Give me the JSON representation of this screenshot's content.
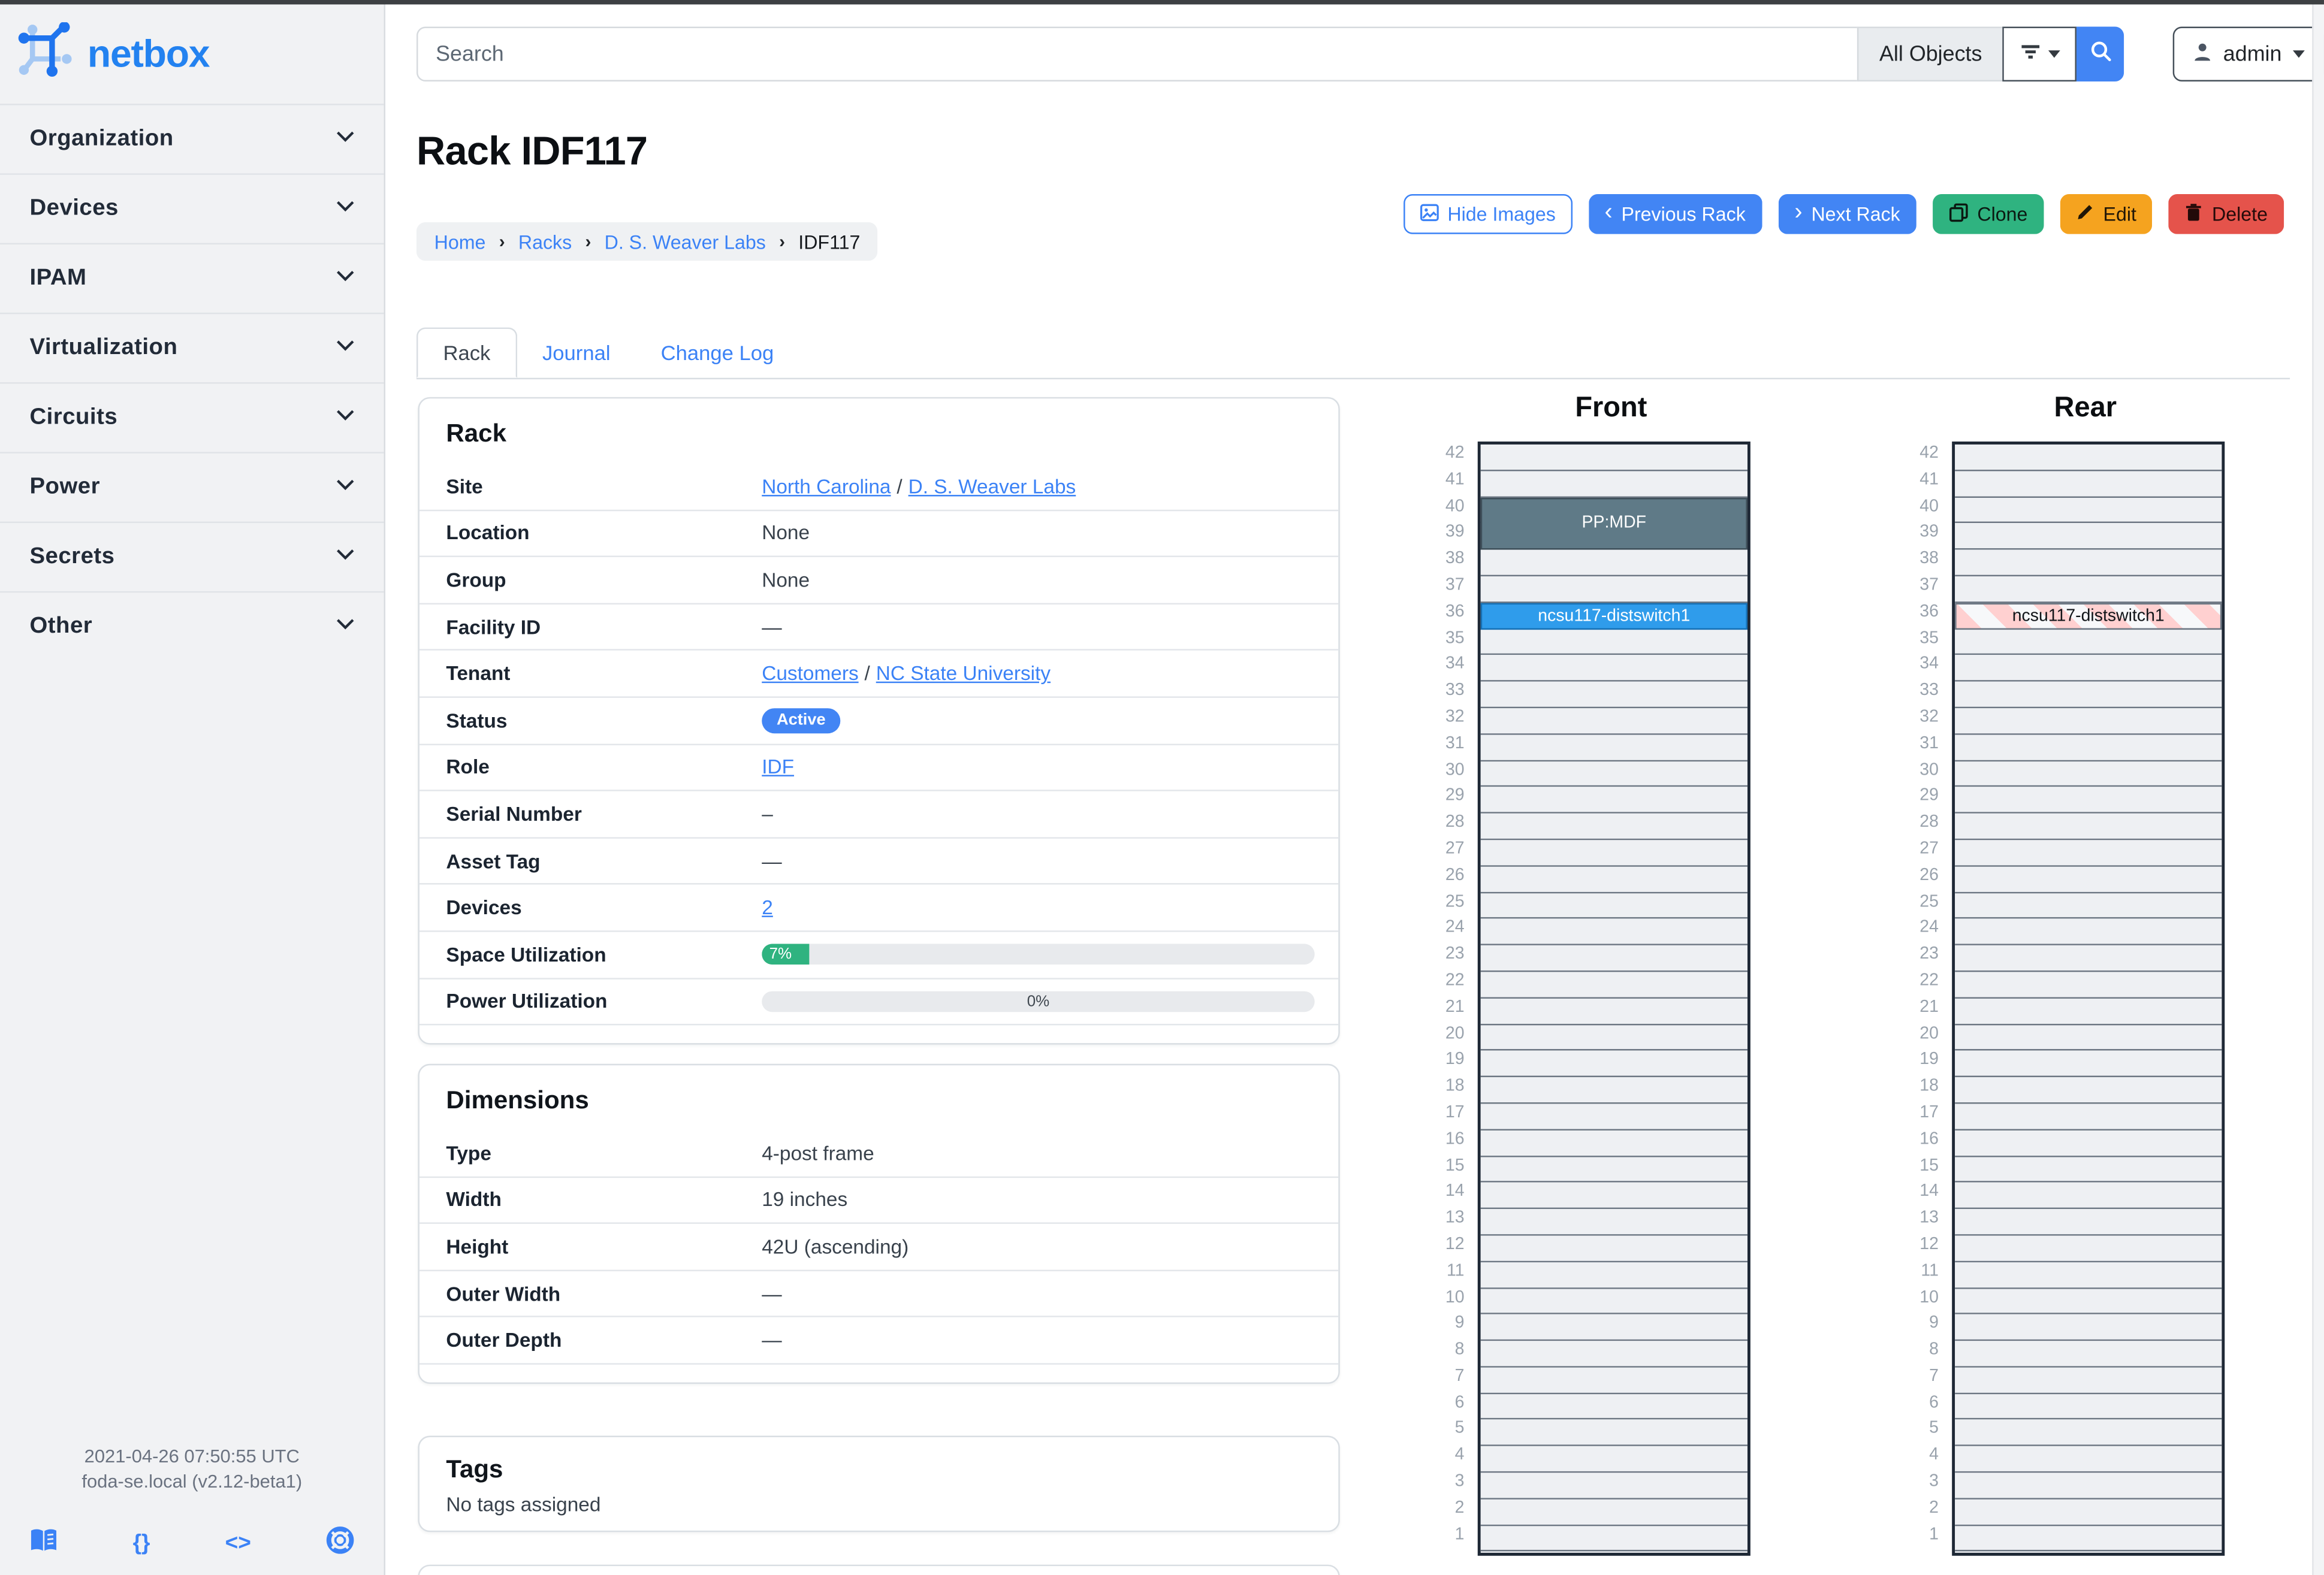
{
  "brand": {
    "name": "netbox"
  },
  "sidebar": {
    "items": [
      {
        "label": "Organization"
      },
      {
        "label": "Devices"
      },
      {
        "label": "IPAM"
      },
      {
        "label": "Virtualization"
      },
      {
        "label": "Circuits"
      },
      {
        "label": "Power"
      },
      {
        "label": "Secrets"
      },
      {
        "label": "Other"
      }
    ],
    "footer": {
      "timestamp": "2021-04-26 07:50:55 UTC",
      "instance": "foda-se.local (v2.12-beta1)",
      "icons": [
        {
          "name": "docs-book-icon",
          "glyph": "book"
        },
        {
          "name": "rest-api-icon",
          "glyph": "{}"
        },
        {
          "name": "code-icon",
          "glyph": "<>"
        },
        {
          "name": "help-lifebuoy-icon",
          "glyph": "lifebuoy"
        }
      ]
    }
  },
  "topbar": {
    "search": {
      "placeholder": "Search",
      "scope": "All Objects"
    },
    "user": {
      "name": "admin"
    }
  },
  "page": {
    "title": "Rack IDF117",
    "breadcrumbs": [
      {
        "label": "Home",
        "is_link": true
      },
      {
        "label": "Racks",
        "is_link": true
      },
      {
        "label": "D. S. Weaver Labs",
        "is_link": true
      },
      {
        "label": "IDF117",
        "is_link": false
      }
    ],
    "actions": {
      "hide_images": "Hide Images",
      "previous_rack": "Previous Rack",
      "next_rack": "Next Rack",
      "clone": "Clone",
      "edit": "Edit",
      "delete": "Delete"
    },
    "tabs": [
      {
        "label": "Rack",
        "active": true
      },
      {
        "label": "Journal",
        "active": false
      },
      {
        "label": "Change Log",
        "active": false
      }
    ]
  },
  "panels": {
    "rack": {
      "title": "Rack",
      "rows": [
        {
          "label": "Site",
          "type": "links",
          "links": [
            "North Carolina",
            "D. S. Weaver Labs"
          ],
          "separator": "/"
        },
        {
          "label": "Location",
          "type": "text",
          "value": "None"
        },
        {
          "label": "Group",
          "type": "text",
          "value": "None"
        },
        {
          "label": "Facility ID",
          "type": "text",
          "value": "—"
        },
        {
          "label": "Tenant",
          "type": "links",
          "links": [
            "Customers",
            "NC State University"
          ],
          "separator": "/"
        },
        {
          "label": "Status",
          "type": "badge",
          "value": "Active"
        },
        {
          "label": "Role",
          "type": "links",
          "links": [
            "IDF"
          ],
          "separator": ""
        },
        {
          "label": "Serial Number",
          "type": "text",
          "value": "–"
        },
        {
          "label": "Asset Tag",
          "type": "text",
          "value": "—"
        },
        {
          "label": "Devices",
          "type": "links",
          "links": [
            "2"
          ],
          "separator": ""
        },
        {
          "label": "Space Utilization",
          "type": "progress",
          "percent": 7,
          "display": "7%"
        },
        {
          "label": "Power Utilization",
          "type": "progress",
          "percent": 0,
          "display": "0%"
        }
      ]
    },
    "dimensions": {
      "title": "Dimensions",
      "rows": [
        {
          "label": "Type",
          "type": "text",
          "value": "4-post frame"
        },
        {
          "label": "Width",
          "type": "text",
          "value": "19 inches"
        },
        {
          "label": "Height",
          "type": "text",
          "value": "42U (ascending)"
        },
        {
          "label": "Outer Width",
          "type": "text",
          "value": "—"
        },
        {
          "label": "Outer Depth",
          "type": "text",
          "value": "—"
        }
      ]
    },
    "tags": {
      "title": "Tags",
      "empty_text": "No tags assigned"
    }
  },
  "elevations": {
    "unit_count": 42,
    "units_top_to_bottom": [
      42,
      41,
      40,
      39,
      38,
      37,
      36,
      35,
      34,
      33,
      32,
      31,
      30,
      29,
      28,
      27,
      26,
      25,
      24,
      23,
      22,
      21,
      20,
      19,
      18,
      17,
      16,
      15,
      14,
      13,
      12,
      11,
      10,
      9,
      8,
      7,
      6,
      5,
      4,
      3,
      2,
      1
    ],
    "front": {
      "title": "Front",
      "devices": [
        {
          "name": "PP:MDF",
          "top_unit": 40,
          "u_height": 2,
          "variant": "gray"
        },
        {
          "name": "ncsu117-distswitch1",
          "top_unit": 36,
          "u_height": 1,
          "variant": "blue"
        }
      ]
    },
    "rear": {
      "title": "Rear",
      "devices": [
        {
          "name": "ncsu117-distswitch1",
          "top_unit": 36,
          "u_height": 1,
          "variant": "striped"
        }
      ]
    }
  },
  "colors": {
    "accent_blue": "#4285f4",
    "link_blue": "#3b82f6",
    "device_blue": "#2f9ceb",
    "device_gray": "#5f7a87",
    "success_green": "#2fb380",
    "warning_orange": "#f5a31f",
    "danger_red": "#e5534b"
  }
}
